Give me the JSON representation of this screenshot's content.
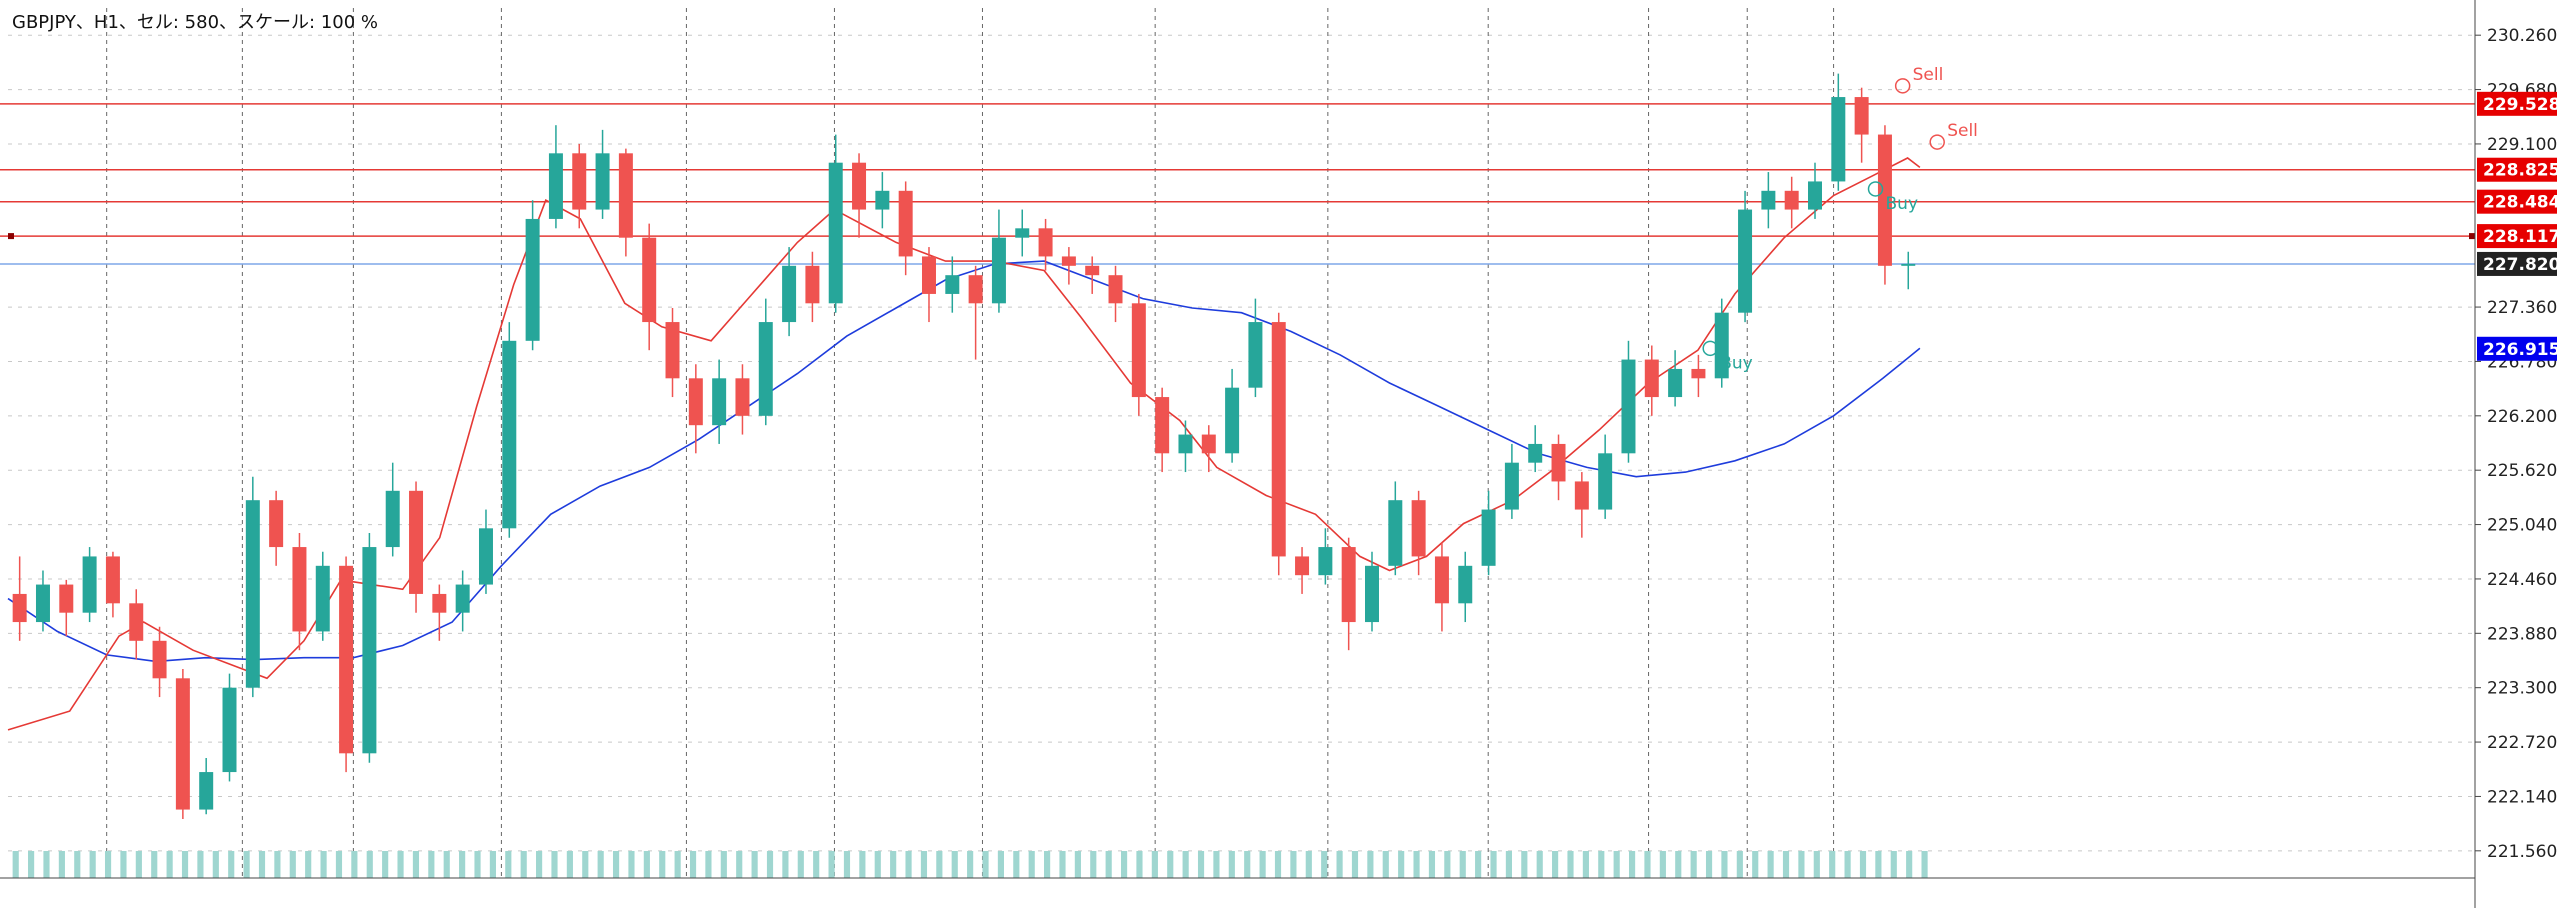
{
  "chart_data": {
    "type": "candlestick",
    "title": "GBPJPY、H1、セル: 580、スケール: 100 %",
    "ylim": [
      221.27,
      230.55
    ],
    "yticks": [
      "230.260",
      "229.680",
      "229.100",
      "227.360",
      "226.780",
      "226.200",
      "225.620",
      "225.040",
      "224.460",
      "223.880",
      "223.300",
      "222.720",
      "222.140",
      "221.560"
    ],
    "colors": {
      "up": "#26a69a",
      "down": "#ef5350",
      "ma_fast": "#e53935",
      "ma_slow": "#1e3cdc",
      "hline": "#e53935",
      "price_line": "#7fa7e8",
      "grid": "#c8c8c8",
      "volume": "#9fd6d0"
    },
    "hlines": [
      {
        "value": 229.528,
        "label": "229.528",
        "color": "#e60000"
      },
      {
        "value": 228.825,
        "label": "228.825",
        "color": "#e60000"
      },
      {
        "value": 228.484,
        "label": "228.484",
        "color": "#e60000"
      },
      {
        "value": 228.117,
        "label": "228.117",
        "color": "#e60000"
      }
    ],
    "current_price": {
      "value": 227.82,
      "label": "227.820",
      "color": "#222222"
    },
    "ma_label": {
      "value": 226.915,
      "label": "226.915",
      "color": "#0000ee"
    },
    "signals": [
      {
        "text": "Sell",
        "color": "#ef5350",
        "x": 0.768,
        "y": 229.72
      },
      {
        "text": "Sell",
        "color": "#ef5350",
        "x": 0.782,
        "y": 229.12
      },
      {
        "text": "Buy",
        "color": "#26a69a",
        "x": 0.757,
        "y": 228.62
      },
      {
        "text": "Buy",
        "color": "#26a69a",
        "x": 0.69,
        "y": 226.92
      }
    ],
    "ma_fast": [
      [
        0.0,
        222.85
      ],
      [
        0.025,
        223.05
      ],
      [
        0.045,
        223.85
      ],
      [
        0.055,
        224.0
      ],
      [
        0.075,
        223.7
      ],
      [
        0.09,
        223.55
      ],
      [
        0.105,
        223.4
      ],
      [
        0.12,
        223.8
      ],
      [
        0.135,
        224.45
      ],
      [
        0.16,
        224.35
      ],
      [
        0.175,
        224.9
      ],
      [
        0.19,
        226.3
      ],
      [
        0.205,
        227.6
      ],
      [
        0.218,
        228.5
      ],
      [
        0.232,
        228.3
      ],
      [
        0.25,
        227.4
      ],
      [
        0.265,
        227.15
      ],
      [
        0.285,
        227.0
      ],
      [
        0.3,
        227.45
      ],
      [
        0.32,
        228.05
      ],
      [
        0.335,
        228.4
      ],
      [
        0.36,
        228.05
      ],
      [
        0.38,
        227.85
      ],
      [
        0.4,
        227.85
      ],
      [
        0.42,
        227.75
      ],
      [
        0.435,
        227.25
      ],
      [
        0.455,
        226.55
      ],
      [
        0.475,
        226.15
      ],
      [
        0.49,
        225.65
      ],
      [
        0.51,
        225.35
      ],
      [
        0.53,
        225.15
      ],
      [
        0.548,
        224.7
      ],
      [
        0.56,
        224.55
      ],
      [
        0.575,
        224.7
      ],
      [
        0.59,
        225.05
      ],
      [
        0.61,
        225.3
      ],
      [
        0.625,
        225.6
      ],
      [
        0.645,
        226.05
      ],
      [
        0.665,
        226.55
      ],
      [
        0.685,
        226.9
      ],
      [
        0.7,
        227.5
      ],
      [
        0.72,
        228.1
      ],
      [
        0.74,
        228.55
      ],
      [
        0.755,
        228.75
      ],
      [
        0.77,
        228.95
      ],
      [
        0.775,
        228.85
      ]
    ],
    "ma_slow": [
      [
        0.0,
        224.25
      ],
      [
        0.02,
        223.9
      ],
      [
        0.04,
        223.65
      ],
      [
        0.06,
        223.58
      ],
      [
        0.08,
        223.62
      ],
      [
        0.1,
        223.6
      ],
      [
        0.12,
        223.62
      ],
      [
        0.14,
        223.62
      ],
      [
        0.16,
        223.75
      ],
      [
        0.18,
        224.0
      ],
      [
        0.2,
        224.6
      ],
      [
        0.22,
        225.15
      ],
      [
        0.24,
        225.45
      ],
      [
        0.26,
        225.65
      ],
      [
        0.28,
        225.95
      ],
      [
        0.3,
        226.3
      ],
      [
        0.32,
        226.65
      ],
      [
        0.34,
        227.05
      ],
      [
        0.36,
        227.35
      ],
      [
        0.38,
        227.65
      ],
      [
        0.4,
        227.82
      ],
      [
        0.42,
        227.85
      ],
      [
        0.44,
        227.65
      ],
      [
        0.46,
        227.45
      ],
      [
        0.48,
        227.35
      ],
      [
        0.5,
        227.3
      ],
      [
        0.52,
        227.1
      ],
      [
        0.54,
        226.85
      ],
      [
        0.56,
        226.55
      ],
      [
        0.58,
        226.3
      ],
      [
        0.6,
        226.05
      ],
      [
        0.62,
        225.8
      ],
      [
        0.64,
        225.65
      ],
      [
        0.66,
        225.55
      ],
      [
        0.68,
        225.6
      ],
      [
        0.7,
        225.72
      ],
      [
        0.72,
        225.9
      ],
      [
        0.74,
        226.2
      ],
      [
        0.76,
        226.6
      ],
      [
        0.775,
        226.92
      ]
    ],
    "candles": [
      [
        224.3,
        224.0,
        224.7,
        223.8
      ],
      [
        224.0,
        224.4,
        224.55,
        223.9
      ],
      [
        224.4,
        224.1,
        224.45,
        223.85
      ],
      [
        224.1,
        224.7,
        224.8,
        224.0
      ],
      [
        224.7,
        224.2,
        224.75,
        224.05
      ],
      [
        224.2,
        223.8,
        224.35,
        223.6
      ],
      [
        223.8,
        223.4,
        223.95,
        223.2
      ],
      [
        223.4,
        222.0,
        223.5,
        221.9
      ],
      [
        222.0,
        222.4,
        222.55,
        221.95
      ],
      [
        222.4,
        223.3,
        223.45,
        222.3
      ],
      [
        223.3,
        225.3,
        225.55,
        223.2
      ],
      [
        225.3,
        224.8,
        225.4,
        224.6
      ],
      [
        224.8,
        223.9,
        224.95,
        223.7
      ],
      [
        223.9,
        224.6,
        224.75,
        223.8
      ],
      [
        224.6,
        222.6,
        224.7,
        222.4
      ],
      [
        222.6,
        224.8,
        224.95,
        222.5
      ],
      [
        224.8,
        225.4,
        225.7,
        224.7
      ],
      [
        225.4,
        224.3,
        225.5,
        224.1
      ],
      [
        224.3,
        224.1,
        224.4,
        223.8
      ],
      [
        224.1,
        224.4,
        224.55,
        223.9
      ],
      [
        224.4,
        225.0,
        225.2,
        224.3
      ],
      [
        225.0,
        227.0,
        227.2,
        224.9
      ],
      [
        227.0,
        228.3,
        228.5,
        226.9
      ],
      [
        228.3,
        229.0,
        229.3,
        228.2
      ],
      [
        229.0,
        228.4,
        229.1,
        228.2
      ],
      [
        228.4,
        229.0,
        229.25,
        228.3
      ],
      [
        229.0,
        228.1,
        229.05,
        227.9
      ],
      [
        228.1,
        227.2,
        228.25,
        226.9
      ],
      [
        227.2,
        226.6,
        227.35,
        226.4
      ],
      [
        226.6,
        226.1,
        226.75,
        225.8
      ],
      [
        226.1,
        226.6,
        226.8,
        225.9
      ],
      [
        226.6,
        226.2,
        226.75,
        226.0
      ],
      [
        226.2,
        227.2,
        227.45,
        226.1
      ],
      [
        227.2,
        227.8,
        228.0,
        227.05
      ],
      [
        227.8,
        227.4,
        227.95,
        227.2
      ],
      [
        227.4,
        228.9,
        229.2,
        227.3
      ],
      [
        228.9,
        228.4,
        229.0,
        228.1
      ],
      [
        228.4,
        228.6,
        228.8,
        228.2
      ],
      [
        228.6,
        227.9,
        228.7,
        227.7
      ],
      [
        227.9,
        227.5,
        228.0,
        227.2
      ],
      [
        227.5,
        227.7,
        227.9,
        227.3
      ],
      [
        227.7,
        227.4,
        227.8,
        226.8
      ],
      [
        227.4,
        228.1,
        228.4,
        227.3
      ],
      [
        228.1,
        228.2,
        228.4,
        227.9
      ],
      [
        228.2,
        227.9,
        228.3,
        227.75
      ],
      [
        227.9,
        227.8,
        228.0,
        227.6
      ],
      [
        227.8,
        227.7,
        227.9,
        227.5
      ],
      [
        227.7,
        227.4,
        227.8,
        227.2
      ],
      [
        227.4,
        226.4,
        227.5,
        226.2
      ],
      [
        226.4,
        225.8,
        226.5,
        225.6
      ],
      [
        225.8,
        226.0,
        226.15,
        225.6
      ],
      [
        226.0,
        225.8,
        226.1,
        225.6
      ],
      [
        225.8,
        226.5,
        226.7,
        225.7
      ],
      [
        226.5,
        227.2,
        227.45,
        226.4
      ],
      [
        227.2,
        224.7,
        227.3,
        224.5
      ],
      [
        224.7,
        224.5,
        224.8,
        224.3
      ],
      [
        224.5,
        224.8,
        225.0,
        224.4
      ],
      [
        224.8,
        224.0,
        224.9,
        223.7
      ],
      [
        224.0,
        224.6,
        224.75,
        223.9
      ],
      [
        224.6,
        225.3,
        225.5,
        224.5
      ],
      [
        225.3,
        224.7,
        225.4,
        224.5
      ],
      [
        224.7,
        224.2,
        224.85,
        223.9
      ],
      [
        224.2,
        224.6,
        224.75,
        224.0
      ],
      [
        224.6,
        225.2,
        225.4,
        224.5
      ],
      [
        225.2,
        225.7,
        225.9,
        225.1
      ],
      [
        225.7,
        225.9,
        226.1,
        225.6
      ],
      [
        225.9,
        225.5,
        226.0,
        225.3
      ],
      [
        225.5,
        225.2,
        225.6,
        224.9
      ],
      [
        225.2,
        225.8,
        226.0,
        225.1
      ],
      [
        225.8,
        226.8,
        227.0,
        225.7
      ],
      [
        226.8,
        226.4,
        226.95,
        226.2
      ],
      [
        226.4,
        226.7,
        226.9,
        226.3
      ],
      [
        226.7,
        226.6,
        226.85,
        226.4
      ],
      [
        226.6,
        227.3,
        227.45,
        226.5
      ],
      [
        227.3,
        228.4,
        228.6,
        227.2
      ],
      [
        228.4,
        228.6,
        228.8,
        228.2
      ],
      [
        228.6,
        228.4,
        228.75,
        228.2
      ],
      [
        228.4,
        228.7,
        228.9,
        228.3
      ],
      [
        228.7,
        229.6,
        229.85,
        228.6
      ],
      [
        229.6,
        229.2,
        229.7,
        228.9
      ],
      [
        229.2,
        227.8,
        229.3,
        227.6
      ],
      [
        227.8,
        227.82,
        227.95,
        227.55
      ]
    ],
    "volume_bars": 125
  }
}
